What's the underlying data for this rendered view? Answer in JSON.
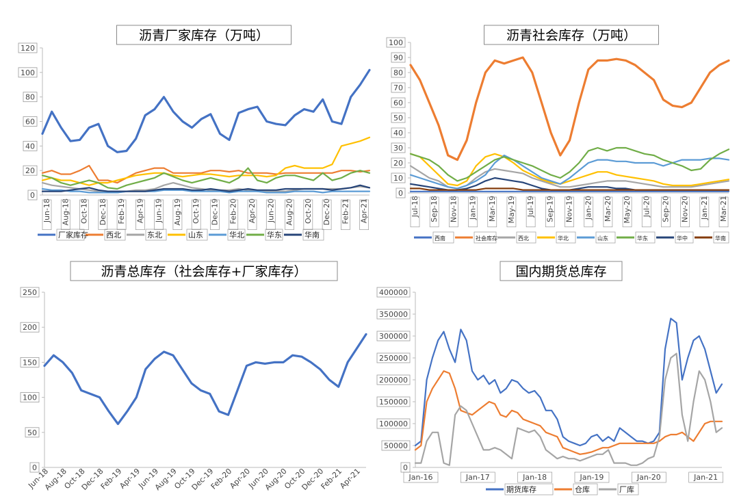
{
  "chart_data": [
    {
      "id": "c1",
      "type": "line",
      "title": "沥青厂家库存（万吨）",
      "ylim": [
        0,
        120
      ],
      "yticks": [
        0,
        20,
        40,
        60,
        80,
        100,
        120
      ],
      "xlabels": [
        "Jun-18",
        "Aug-18",
        "Oct-18",
        "Dec-18",
        "Feb-19",
        "Apr-19",
        "Jun-19",
        "Aug-19",
        "Oct-19",
        "Dec-19",
        "Feb-20",
        "Apr-20",
        "Jun-20",
        "Aug-20",
        "Oct-20",
        "Dec-20",
        "Feb-21",
        "Apr-21"
      ],
      "x": [
        0,
        0.5,
        1,
        1.5,
        2,
        2.5,
        3,
        3.5,
        4,
        4.5,
        5,
        5.5,
        6,
        6.5,
        7,
        7.5,
        8,
        8.5,
        9,
        9.5,
        10,
        10.5,
        11,
        11.5,
        12,
        12.5,
        13,
        13.5,
        14,
        14.5,
        15,
        15.5,
        16,
        16.5,
        17,
        17.5
      ],
      "legend_position": "bottom",
      "series": [
        {
          "name": "厂家库存",
          "color": "#4472C4",
          "values": [
            50,
            68,
            55,
            44,
            45,
            55,
            58,
            40,
            35,
            36,
            46,
            65,
            70,
            80,
            68,
            60,
            55,
            62,
            66,
            50,
            45,
            67,
            70,
            72,
            60,
            58,
            57,
            65,
            70,
            68,
            78,
            60,
            58,
            80,
            90,
            102
          ]
        },
        {
          "name": "西北",
          "color": "#ED7D31",
          "values": [
            18,
            20,
            17,
            17,
            20,
            24,
            12,
            12,
            10,
            14,
            18,
            20,
            22,
            22,
            18,
            18,
            18,
            18,
            20,
            20,
            19,
            20,
            18,
            18,
            18,
            17,
            18,
            18,
            18,
            18,
            18,
            18,
            20,
            20,
            19,
            20
          ]
        },
        {
          "name": "东北",
          "color": "#A5A5A5",
          "values": [
            10,
            8,
            7,
            6,
            5,
            4,
            3,
            2,
            2,
            3,
            4,
            4,
            5,
            8,
            10,
            8,
            6,
            5,
            4,
            4,
            4,
            5,
            4,
            3,
            3,
            3,
            3,
            4,
            5,
            5,
            5,
            5,
            5,
            6,
            7,
            6
          ]
        },
        {
          "name": "山东",
          "color": "#FFC000",
          "values": [
            12,
            14,
            12,
            12,
            10,
            8,
            10,
            10,
            12,
            14,
            16,
            17,
            18,
            18,
            16,
            15,
            16,
            17,
            17,
            16,
            15,
            16,
            16,
            16,
            15,
            16,
            22,
            24,
            22,
            22,
            22,
            25,
            40,
            42,
            44,
            47
          ]
        },
        {
          "name": "华北",
          "color": "#5B9BD5",
          "values": [
            5,
            4,
            4,
            3,
            3,
            2,
            2,
            2,
            2,
            3,
            3,
            3,
            3,
            4,
            4,
            4,
            3,
            3,
            3,
            3,
            2,
            3,
            3,
            3,
            2,
            2,
            2,
            3,
            3,
            3,
            2,
            3,
            3,
            3,
            3,
            3
          ]
        },
        {
          "name": "华东",
          "color": "#70AD47",
          "values": [
            16,
            14,
            10,
            8,
            10,
            12,
            10,
            6,
            5,
            8,
            10,
            12,
            14,
            18,
            15,
            12,
            10,
            12,
            14,
            12,
            10,
            14,
            22,
            12,
            10,
            14,
            16,
            16,
            14,
            12,
            18,
            12,
            14,
            18,
            20,
            18
          ]
        },
        {
          "name": "华南",
          "color": "#264478",
          "values": [
            3,
            3,
            3,
            4,
            5,
            6,
            4,
            3,
            3,
            3,
            3,
            3,
            4,
            5,
            5,
            5,
            4,
            4,
            5,
            4,
            3,
            4,
            5,
            4,
            4,
            4,
            5,
            5,
            5,
            5,
            5,
            4,
            5,
            6,
            8,
            6
          ]
        }
      ]
    },
    {
      "id": "c2",
      "type": "line",
      "title": "沥青社会库存（万吨）",
      "ylim": [
        0,
        100
      ],
      "yticks": [
        0,
        10,
        20,
        30,
        40,
        50,
        60,
        70,
        80,
        90,
        100
      ],
      "xlabels": [
        "Jul-18",
        "Sep-18",
        "Nov-18",
        "Jan-19",
        "Mar-19",
        "May-19",
        "Jul-19",
        "Sep-19",
        "Nov-19",
        "Jan-20",
        "Mar-20",
        "May-20",
        "Jul-20",
        "Sep-20",
        "Nov-20",
        "Jan-21",
        "Mar-21"
      ],
      "x": [
        0,
        0.5,
        1,
        1.5,
        2,
        2.5,
        3,
        3.5,
        4,
        4.5,
        5,
        5.5,
        6,
        6.5,
        7,
        7.5,
        8,
        8.5,
        9,
        9.5,
        10,
        10.5,
        11,
        11.5,
        12,
        12.5,
        13,
        13.5,
        14,
        14.5,
        15,
        15.5,
        16,
        16.5,
        17
      ],
      "legend_position": "bottom",
      "series": [
        {
          "name": "西南",
          "color": "#4472C4",
          "values": [
            1,
            1,
            1,
            1,
            1,
            1,
            1,
            1,
            1,
            1,
            1,
            1,
            1,
            1,
            1,
            1,
            1,
            1,
            1,
            1,
            1,
            1,
            1,
            1,
            1,
            1,
            1,
            1,
            1,
            1,
            1,
            1,
            1,
            1,
            1
          ]
        },
        {
          "name": "社会库存",
          "color": "#ED7D31",
          "values": [
            85,
            75,
            60,
            45,
            25,
            22,
            35,
            60,
            80,
            88,
            86,
            88,
            90,
            80,
            60,
            40,
            25,
            35,
            60,
            82,
            88,
            88,
            89,
            88,
            85,
            80,
            75,
            62,
            58,
            57,
            60,
            70,
            80,
            85,
            88
          ]
        },
        {
          "name": "西北",
          "color": "#A5A5A5",
          "values": [
            18,
            14,
            10,
            8,
            4,
            3,
            5,
            10,
            14,
            16,
            15,
            14,
            13,
            10,
            8,
            6,
            4,
            4,
            5,
            6,
            7,
            8,
            8,
            8,
            7,
            6,
            5,
            4,
            4,
            4,
            4,
            5,
            6,
            7,
            8
          ]
        },
        {
          "name": "华北",
          "color": "#FFC000",
          "values": [
            26,
            24,
            18,
            12,
            6,
            5,
            8,
            18,
            24,
            26,
            24,
            20,
            15,
            12,
            9,
            7,
            6,
            8,
            10,
            12,
            14,
            14,
            12,
            11,
            10,
            9,
            8,
            6,
            5,
            5,
            5,
            6,
            7,
            8,
            9
          ]
        },
        {
          "name": "山东",
          "color": "#5B9BD5",
          "values": [
            12,
            10,
            8,
            6,
            4,
            3,
            5,
            8,
            12,
            20,
            25,
            22,
            18,
            14,
            10,
            8,
            6,
            10,
            15,
            20,
            22,
            22,
            21,
            21,
            20,
            20,
            20,
            18,
            20,
            22,
            22,
            22,
            23,
            23,
            22
          ]
        },
        {
          "name": "华东",
          "color": "#70AD47",
          "values": [
            26,
            24,
            22,
            18,
            12,
            8,
            10,
            14,
            18,
            22,
            24,
            22,
            20,
            18,
            15,
            12,
            10,
            14,
            20,
            28,
            30,
            28,
            30,
            30,
            28,
            26,
            25,
            22,
            20,
            18,
            15,
            16,
            22,
            26,
            29
          ]
        },
        {
          "name": "华中",
          "color": "#264478",
          "values": [
            6,
            5,
            4,
            3,
            2,
            2,
            3,
            5,
            8,
            10,
            9,
            8,
            7,
            5,
            3,
            2,
            2,
            2,
            3,
            4,
            4,
            4,
            3,
            3,
            2,
            2,
            2,
            2,
            2,
            2,
            2,
            2,
            2,
            2,
            2
          ]
        },
        {
          "name": "华南",
          "color": "#843C0C",
          "values": [
            3,
            3,
            2,
            2,
            2,
            2,
            2,
            2,
            3,
            3,
            3,
            3,
            2,
            2,
            2,
            2,
            2,
            2,
            2,
            2,
            2,
            2,
            2,
            2,
            2,
            2,
            2,
            2,
            2,
            2,
            2,
            2,
            2,
            2,
            2
          ]
        }
      ]
    },
    {
      "id": "c3",
      "type": "line",
      "title": "沥青总库存（社会库存+厂家库存）",
      "ylim": [
        0,
        250
      ],
      "yticks": [
        0,
        50,
        100,
        150,
        200,
        250
      ],
      "xlabels": [
        "Jun-18",
        "Aug-18",
        "Oct-18",
        "Dec-18",
        "Feb-19",
        "Apr-19",
        "Jun-19",
        "Aug-19",
        "Oct-19",
        "Dec-19",
        "Feb-20",
        "Apr-20",
        "Jun-20",
        "Aug-20",
        "Oct-20",
        "Dec-20",
        "Feb-21",
        "Apr-21"
      ],
      "x": [
        0,
        0.5,
        1,
        1.5,
        2,
        2.5,
        3,
        3.5,
        4,
        4.5,
        5,
        5.5,
        6,
        6.5,
        7,
        7.5,
        8,
        8.5,
        9,
        9.5,
        10,
        10.5,
        11,
        11.5,
        12,
        12.5,
        13,
        13.5,
        14,
        14.5,
        15,
        15.5,
        16,
        16.5,
        17,
        17.5
      ],
      "legend_position": "none",
      "series": [
        {
          "name": "",
          "color": "#4472C4",
          "values": [
            145,
            160,
            150,
            135,
            110,
            105,
            100,
            80,
            62,
            80,
            100,
            140,
            155,
            165,
            160,
            140,
            120,
            110,
            105,
            80,
            75,
            110,
            145,
            150,
            148,
            150,
            150,
            160,
            158,
            150,
            140,
            125,
            115,
            150,
            170,
            190
          ]
        }
      ]
    },
    {
      "id": "c4",
      "type": "line",
      "title": "国内期货总库存",
      "ylim": [
        0,
        400000
      ],
      "yticks": [
        0,
        50000,
        100000,
        150000,
        200000,
        250000,
        300000,
        350000,
        400000
      ],
      "xlabels": [
        "Jan-16",
        "Jan-17",
        "Jan-18",
        "Jan-19",
        "Jan-20",
        "Jan-21"
      ],
      "x": [
        0,
        0.1,
        0.2,
        0.3,
        0.4,
        0.5,
        0.6,
        0.7,
        0.8,
        0.9,
        1,
        1.1,
        1.2,
        1.3,
        1.4,
        1.5,
        1.6,
        1.7,
        1.8,
        1.9,
        2,
        2.1,
        2.2,
        2.3,
        2.4,
        2.5,
        2.6,
        2.7,
        2.8,
        2.9,
        3,
        3.1,
        3.2,
        3.3,
        3.4,
        3.5,
        3.6,
        3.7,
        3.8,
        3.9,
        4,
        4.1,
        4.2,
        4.3,
        4.4,
        4.5,
        4.6,
        4.7,
        4.8,
        4.9,
        5,
        5.1,
        5.2,
        5.3,
        5.4
      ],
      "legend_position": "bottom",
      "series": [
        {
          "name": "期货库存",
          "color": "#4472C4",
          "values": [
            50000,
            60000,
            200000,
            250000,
            290000,
            310000,
            270000,
            240000,
            315000,
            290000,
            220000,
            200000,
            210000,
            190000,
            200000,
            170000,
            180000,
            200000,
            195000,
            180000,
            170000,
            175000,
            160000,
            130000,
            130000,
            110000,
            70000,
            60000,
            55000,
            50000,
            55000,
            70000,
            75000,
            60000,
            70000,
            60000,
            90000,
            80000,
            70000,
            60000,
            60000,
            55000,
            60000,
            80000,
            270000,
            340000,
            330000,
            200000,
            250000,
            290000,
            300000,
            270000,
            220000,
            170000,
            190000
          ]
        },
        {
          "name": "仓库",
          "color": "#ED7D31",
          "values": [
            40000,
            50000,
            150000,
            180000,
            200000,
            220000,
            215000,
            180000,
            130000,
            125000,
            120000,
            130000,
            140000,
            150000,
            145000,
            120000,
            115000,
            130000,
            125000,
            110000,
            105000,
            100000,
            95000,
            80000,
            75000,
            70000,
            45000,
            40000,
            35000,
            30000,
            32000,
            35000,
            40000,
            45000,
            45000,
            50000,
            55000,
            55000,
            55000,
            55000,
            55000,
            55000,
            55000,
            60000,
            70000,
            75000,
            75000,
            80000,
            70000,
            60000,
            80000,
            100000,
            105000,
            105000,
            105000
          ]
        },
        {
          "name": "厂库",
          "color": "#A5A5A5",
          "values": [
            10000,
            10000,
            60000,
            80000,
            80000,
            10000,
            5000,
            120000,
            140000,
            130000,
            100000,
            70000,
            40000,
            40000,
            45000,
            40000,
            30000,
            20000,
            90000,
            85000,
            80000,
            85000,
            70000,
            40000,
            30000,
            20000,
            25000,
            20000,
            20000,
            15000,
            20000,
            25000,
            30000,
            30000,
            40000,
            10000,
            10000,
            10000,
            5000,
            5000,
            10000,
            20000,
            25000,
            70000,
            200000,
            250000,
            260000,
            120000,
            60000,
            150000,
            220000,
            200000,
            150000,
            80000,
            90000
          ]
        }
      ]
    }
  ]
}
